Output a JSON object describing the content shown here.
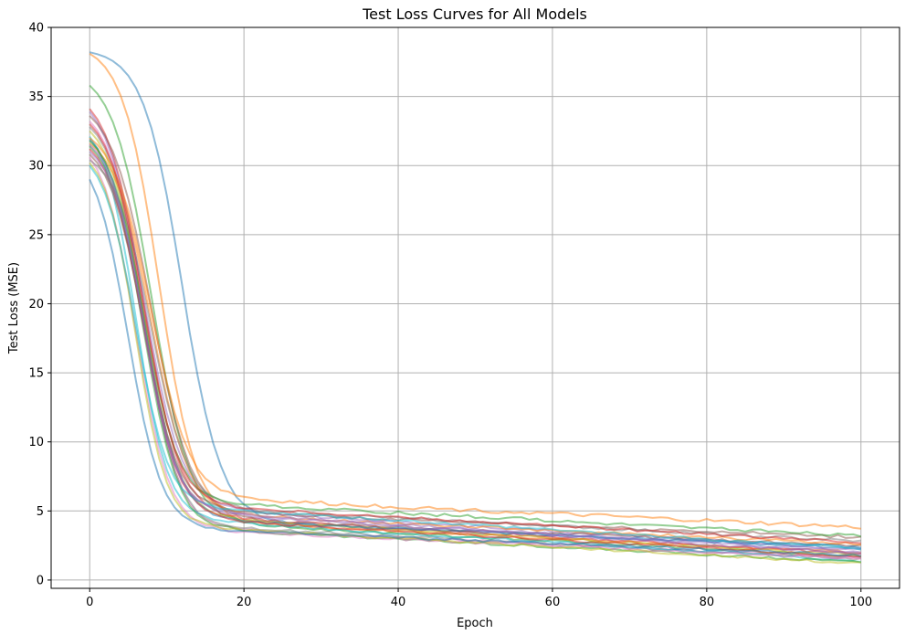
{
  "chart_data": {
    "type": "line",
    "title": "Test Loss Curves for All Models",
    "xlabel": "Epoch",
    "ylabel": "Test Loss (MSE)",
    "xlim": [
      -5,
      105
    ],
    "ylim": [
      -0.6,
      40
    ],
    "xticks": [
      0,
      20,
      40,
      60,
      80,
      100
    ],
    "yticks": [
      0,
      5,
      10,
      15,
      20,
      25,
      30,
      35,
      40
    ],
    "grid": true,
    "line_alpha": 0.5,
    "colors": [
      "#1f77b4",
      "#ff7f0e",
      "#2ca02c",
      "#d62728",
      "#9467bd",
      "#8c564b",
      "#e377c2",
      "#7f7f7f",
      "#bcbd22",
      "#17becf"
    ],
    "series": [
      {
        "start": 38.2,
        "mid": 9.8,
        "midx": 12,
        "k": 0.4,
        "end": 2.3,
        "amp": 0.1
      },
      {
        "start": 38.1,
        "mid": 9.5,
        "midx": 9,
        "k": 0.42,
        "end": 2.0,
        "amp": 0.1
      },
      {
        "start": 35.8,
        "mid": 7.0,
        "midx": 8,
        "k": 0.4,
        "end": 1.7,
        "amp": 0.1
      },
      {
        "start": 34.1,
        "mid": 6.6,
        "midx": 7,
        "k": 0.42,
        "end": 1.9,
        "amp": 0.1
      },
      {
        "start": 33.9,
        "mid": 7.5,
        "midx": 7,
        "k": 0.4,
        "end": 2.2,
        "amp": 0.1
      },
      {
        "start": 33.6,
        "mid": 8.0,
        "midx": 8,
        "k": 0.38,
        "end": 2.5,
        "amp": 0.1
      },
      {
        "start": 33.2,
        "mid": 6.0,
        "midx": 7,
        "k": 0.45,
        "end": 1.6,
        "amp": 0.1
      },
      {
        "start": 32.8,
        "mid": 5.5,
        "midx": 7,
        "k": 0.46,
        "end": 1.5,
        "amp": 0.1
      },
      {
        "start": 32.5,
        "mid": 6.4,
        "midx": 7,
        "k": 0.44,
        "end": 1.8,
        "amp": 0.1
      },
      {
        "start": 32.1,
        "mid": 5.0,
        "midx": 6,
        "k": 0.48,
        "end": 1.4,
        "amp": 0.1
      },
      {
        "start": 31.9,
        "mid": 6.8,
        "midx": 7,
        "k": 0.43,
        "end": 2.4,
        "amp": 0.1
      },
      {
        "start": 31.6,
        "mid": 7.2,
        "midx": 8,
        "k": 0.41,
        "end": 2.6,
        "amp": 0.1
      },
      {
        "start": 31.4,
        "mid": 5.8,
        "midx": 7,
        "k": 0.45,
        "end": 1.3,
        "amp": 0.1
      },
      {
        "start": 31.2,
        "mid": 6.2,
        "midx": 7,
        "k": 0.44,
        "end": 1.7,
        "amp": 0.1
      },
      {
        "start": 31.0,
        "mid": 5.2,
        "midx": 7,
        "k": 0.47,
        "end": 2.0,
        "amp": 0.1
      },
      {
        "start": 30.8,
        "mid": 6.5,
        "midx": 7,
        "k": 0.44,
        "end": 3.1,
        "amp": 0.12
      },
      {
        "start": 30.6,
        "mid": 5.6,
        "midx": 6,
        "k": 0.46,
        "end": 1.5,
        "amp": 0.1
      },
      {
        "start": 30.4,
        "mid": 6.9,
        "midx": 8,
        "k": 0.42,
        "end": 2.8,
        "amp": 0.1
      },
      {
        "start": 30.2,
        "mid": 4.8,
        "midx": 6,
        "k": 0.5,
        "end": 1.2,
        "amp": 0.1
      },
      {
        "start": 30.0,
        "mid": 5.3,
        "midx": 6,
        "k": 0.47,
        "end": 2.3,
        "amp": 0.1
      },
      {
        "start": 29.0,
        "mid": 5.0,
        "midx": 5,
        "k": 0.46,
        "end": 1.8,
        "amp": 0.1
      },
      {
        "start": 32.0,
        "mid": 7.8,
        "midx": 8,
        "k": 0.4,
        "end": 3.8,
        "amp": 0.14
      },
      {
        "start": 31.8,
        "mid": 6.0,
        "midx": 7,
        "k": 0.44,
        "end": 3.2,
        "amp": 0.12
      },
      {
        "start": 33.0,
        "mid": 6.3,
        "midx": 7,
        "k": 0.44,
        "end": 2.7,
        "amp": 0.1
      },
      {
        "start": 31.5,
        "mid": 5.4,
        "midx": 7,
        "k": 0.46,
        "end": 1.9,
        "amp": 0.1
      }
    ]
  }
}
